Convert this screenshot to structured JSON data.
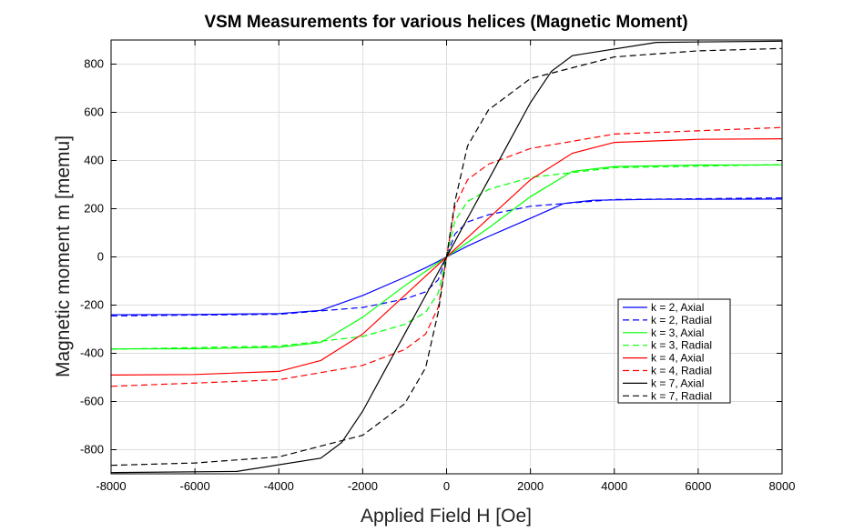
{
  "chart_data": {
    "type": "line",
    "title": "VSM Measurements for various helices (Magnetic Moment)",
    "xlabel": "Applied Field H [Oe]",
    "ylabel": "Magnetic moment m [memu]",
    "xlim": [
      -8000,
      8000
    ],
    "ylim": [
      -900,
      900
    ],
    "xticks": [
      -8000,
      -6000,
      -4000,
      -2000,
      0,
      2000,
      4000,
      6000,
      8000
    ],
    "yticks": [
      -800,
      -600,
      -400,
      -200,
      0,
      200,
      400,
      600,
      800
    ],
    "xtick_labels": [
      "-8000",
      "-6000",
      "-4000",
      "-2000",
      "0",
      "2000",
      "4000",
      "6000",
      "8000"
    ],
    "ytick_labels": [
      "-800",
      "-600",
      "-400",
      "-200",
      "0",
      "200",
      "400",
      "600",
      "800"
    ],
    "grid": true,
    "legend_position": "lower-right",
    "series": [
      {
        "name": "k = 2, Axial",
        "color": "#0000ff",
        "dash": "solid",
        "x": [
          -8000,
          -6000,
          -4000,
          -3000,
          -2000,
          -1000,
          -500,
          0,
          500,
          1000,
          2000,
          2800,
          3500,
          5000,
          8000
        ],
        "y": [
          -240,
          -239,
          -235,
          -222,
          -160,
          -85,
          -45,
          0,
          45,
          85,
          160,
          222,
          235,
          239,
          240
        ]
      },
      {
        "name": "k = 2, Radial",
        "color": "#0000ff",
        "dash": "dashed",
        "x": [
          -8000,
          -4000,
          -2000,
          -1000,
          -500,
          -200,
          0,
          200,
          500,
          1000,
          2000,
          4000,
          8000
        ],
        "y": [
          -245,
          -238,
          -210,
          -175,
          -145,
          -95,
          0,
          95,
          145,
          175,
          210,
          238,
          245
        ]
      },
      {
        "name": "k = 3, Axial",
        "color": "#00ff00",
        "dash": "solid",
        "x": [
          -8000,
          -6000,
          -4000,
          -3000,
          -2000,
          -1000,
          -500,
          0,
          500,
          1000,
          2000,
          3000,
          4000,
          6000,
          8000
        ],
        "y": [
          -382,
          -381,
          -375,
          -355,
          -250,
          -120,
          -60,
          0,
          60,
          120,
          250,
          355,
          375,
          381,
          382
        ]
      },
      {
        "name": "k = 3, Radial",
        "color": "#00ff00",
        "dash": "dashed",
        "x": [
          -8000,
          -4000,
          -2000,
          -1000,
          -500,
          -200,
          0,
          200,
          500,
          1000,
          2000,
          4000,
          8000
        ],
        "y": [
          -383,
          -370,
          -330,
          -280,
          -230,
          -150,
          0,
          150,
          230,
          280,
          330,
          370,
          383
        ]
      },
      {
        "name": "k = 4, Axial",
        "color": "#ff0000",
        "dash": "solid",
        "x": [
          -8000,
          -6000,
          -4000,
          -3000,
          -2000,
          -1000,
          -500,
          0,
          500,
          1000,
          2000,
          3000,
          4000,
          6000,
          8000
        ],
        "y": [
          -490,
          -488,
          -475,
          -430,
          -320,
          -160,
          -80,
          0,
          80,
          160,
          320,
          430,
          475,
          488,
          490
        ]
      },
      {
        "name": "k = 4, Radial",
        "color": "#ff0000",
        "dash": "dashed",
        "x": [
          -8000,
          -4000,
          -2000,
          -1000,
          -500,
          -200,
          0,
          200,
          500,
          1000,
          2000,
          4000,
          8000
        ],
        "y": [
          -537,
          -510,
          -450,
          -385,
          -320,
          -210,
          0,
          210,
          320,
          385,
          450,
          510,
          537
        ]
      },
      {
        "name": "k = 7, Axial",
        "color": "#000000",
        "dash": "solid",
        "x": [
          -8000,
          -5000,
          -3000,
          -2500,
          -2000,
          -1500,
          -1000,
          -500,
          0,
          500,
          1000,
          1500,
          2000,
          2500,
          3000,
          5000,
          8000
        ],
        "y": [
          -895,
          -890,
          -835,
          -770,
          -640,
          -480,
          -320,
          -160,
          0,
          160,
          320,
          480,
          640,
          770,
          835,
          890,
          895
        ]
      },
      {
        "name": "k = 7, Radial",
        "color": "#000000",
        "dash": "dashed",
        "x": [
          -8000,
          -6000,
          -4000,
          -2000,
          -1000,
          -500,
          -200,
          0,
          200,
          500,
          1000,
          2000,
          4000,
          6000,
          8000
        ],
        "y": [
          -865,
          -855,
          -830,
          -740,
          -610,
          -460,
          -230,
          0,
          230,
          460,
          610,
          740,
          830,
          855,
          865
        ]
      }
    ]
  }
}
